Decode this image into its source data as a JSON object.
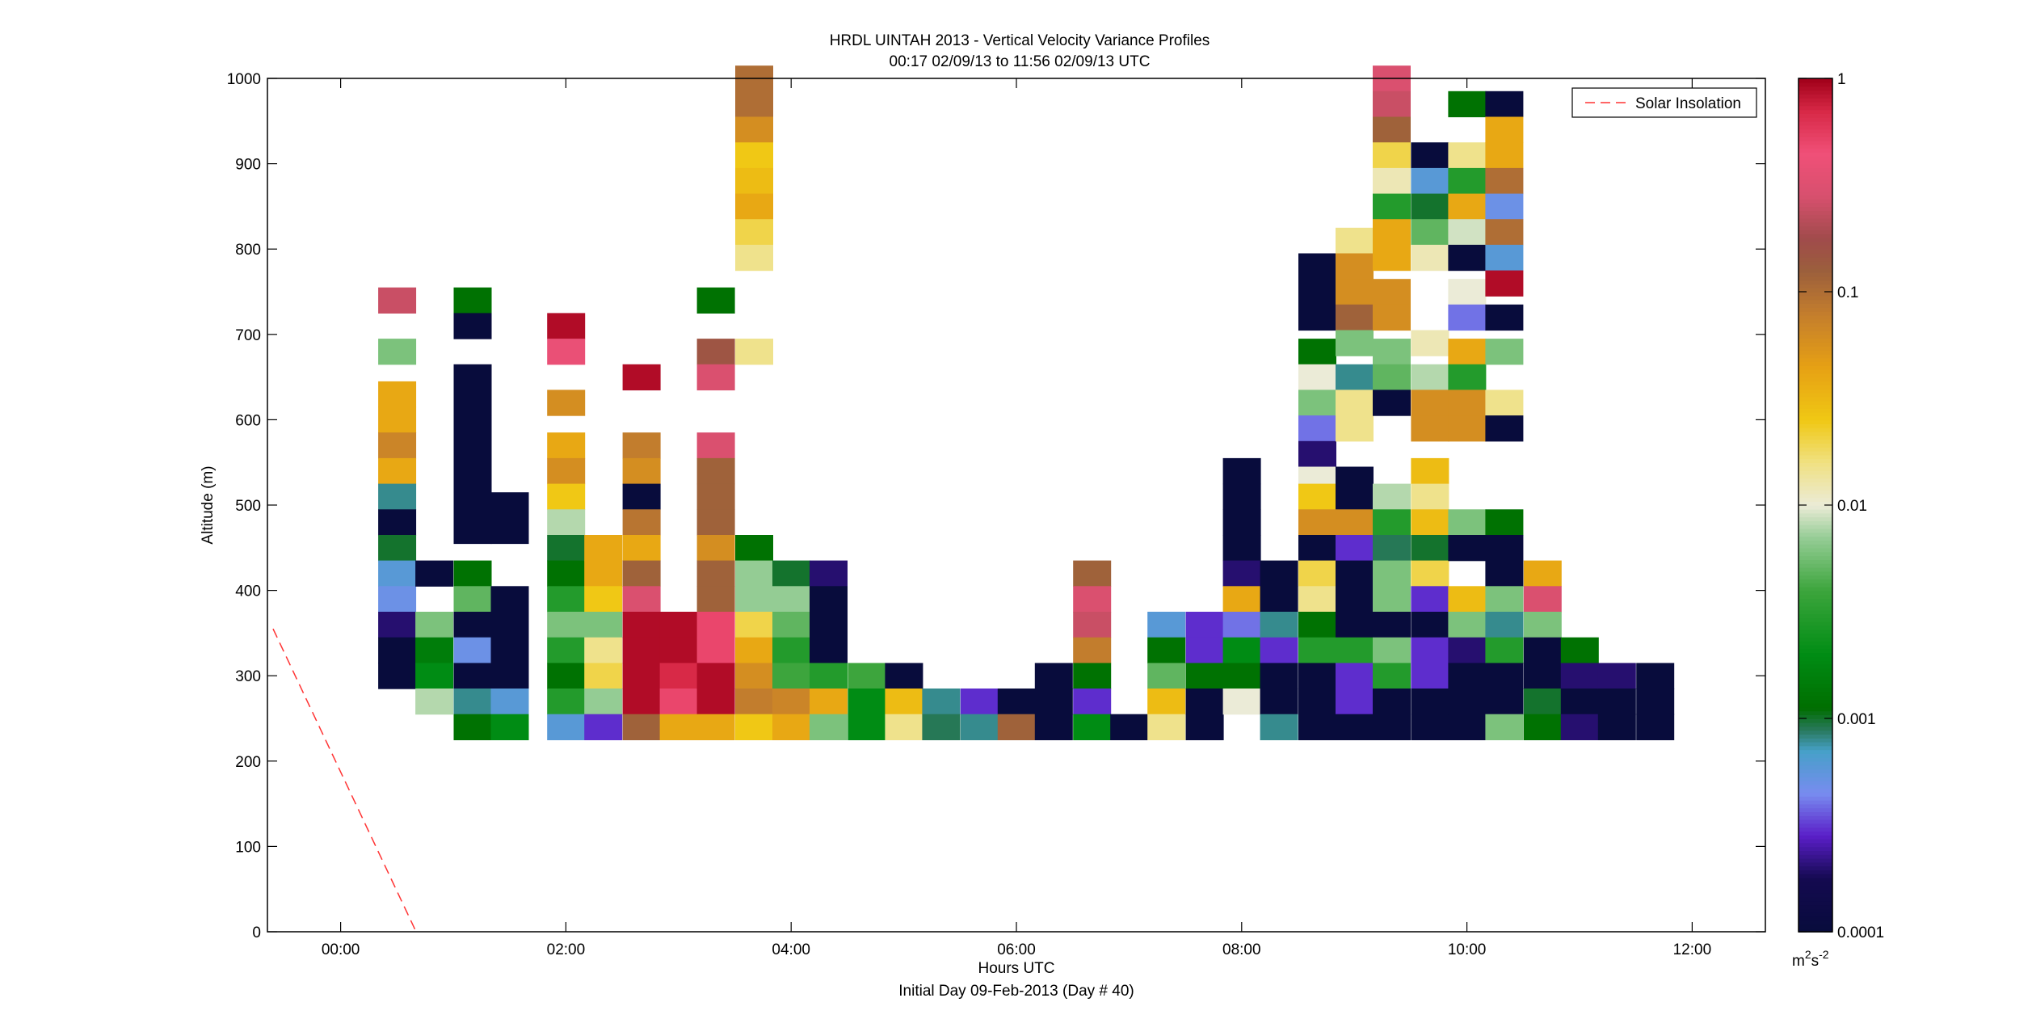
{
  "chart_data": {
    "type": "heatmap",
    "title": "HRDL UINTAH 2013 - Vertical Velocity Variance Profiles",
    "subtitle": "00:17 02/09/13 to 11:56 02/09/13  UTC",
    "xlabel": "Hours UTC",
    "xlabel2": "Initial Day 09-Feb-2013 (Day # 40)",
    "ylabel": "Altitude (m)",
    "xlim": [
      -0.65,
      12.65
    ],
    "ylim": [
      0,
      1000
    ],
    "x_tick_labels": [
      "00:00",
      "02:00",
      "04:00",
      "06:00",
      "08:00",
      "10:00",
      "12:00"
    ],
    "x_tick_values": [
      0,
      2,
      4,
      6,
      8,
      10,
      12
    ],
    "y_tick_labels": [
      "0",
      "100",
      "200",
      "300",
      "400",
      "500",
      "600",
      "700",
      "800",
      "900",
      "1000"
    ],
    "y_tick_values": [
      0,
      100,
      200,
      300,
      400,
      500,
      600,
      700,
      800,
      900,
      1000
    ],
    "colorbar": {
      "scale": "log",
      "range": [
        0.0001,
        1
      ],
      "tick_labels": [
        "1",
        "0.1",
        "0.01",
        "0.001",
        "0.0001"
      ],
      "tick_values": [
        1,
        0.1,
        0.01,
        0.001,
        0.0001
      ],
      "unit": "m²s⁻²",
      "unit_base": "m",
      "unit_exp1": "2",
      "unit_mid": "s",
      "unit_exp2": "-2"
    },
    "legend": {
      "placement": "top-right",
      "entries": [
        {
          "label": "Solar Insolation",
          "style": "dashed",
          "color": "#ff3333"
        }
      ]
    },
    "solar_insolation_line": {
      "x": [
        -0.6,
        0.67
      ],
      "y": [
        355,
        0
      ]
    },
    "bin_width_hours": 0.333,
    "bin_height_m": 30,
    "profiles": [
      {
        "t": 0.5,
        "z": [
          740,
          680,
          630,
          600,
          570,
          540,
          510,
          480,
          450,
          420,
          390,
          360,
          330,
          300
        ],
        "v": [
          0.25,
          0.006,
          0.04,
          0.04,
          0.07,
          0.04,
          0.0008,
          0.0001,
          0.001,
          0.0006,
          0.0005,
          0.0002,
          0.0001,
          0.0001
        ]
      },
      {
        "t": 0.83,
        "z": [
          420,
          360,
          330,
          300,
          270
        ],
        "v": [
          0.0001,
          0.006,
          0.0015,
          0.002,
          0.008
        ]
      },
      {
        "t": 1.17,
        "z": [
          740,
          710,
          650,
          620,
          590,
          560,
          530,
          500,
          470,
          420,
          390,
          360,
          330,
          300,
          270,
          240
        ],
        "v": [
          0.0012,
          0.0001,
          0.0001,
          0.0001,
          0.0001,
          0.0001,
          0.0001,
          0.0001,
          0.0001,
          0.0012,
          0.005,
          0.0001,
          0.0005,
          0.0001,
          0.0008,
          0.0012
        ]
      },
      {
        "t": 1.5,
        "z": [
          500,
          470,
          390,
          360,
          330,
          300,
          270,
          240
        ],
        "v": [
          0.0001,
          0.0001,
          0.0001,
          0.0001,
          0.0001,
          0.0001,
          0.0006,
          0.002
        ]
      },
      {
        "t": 2.0,
        "z": [
          710,
          680,
          620,
          570,
          540,
          510,
          480,
          450,
          420,
          390,
          360,
          330,
          300,
          270,
          240
        ],
        "v": [
          0.9,
          0.4,
          0.06,
          0.04,
          0.06,
          0.025,
          0.008,
          0.001,
          0.0012,
          0.003,
          0.006,
          0.003,
          0.0012,
          0.003,
          0.0006
        ]
      },
      {
        "t": 2.33,
        "z": [
          450,
          420,
          390,
          360,
          330,
          300,
          270,
          240
        ],
        "v": [
          0.04,
          0.04,
          0.025,
          0.006,
          0.015,
          0.02,
          0.007,
          0.0003
        ]
      },
      {
        "t": 2.67,
        "z": [
          650,
          570,
          540,
          510,
          480,
          450,
          420,
          390,
          360,
          330,
          300,
          270,
          240
        ],
        "v": [
          0.9,
          0.08,
          0.06,
          0.0001,
          0.09,
          0.04,
          0.12,
          0.3,
          0.9,
          0.9,
          0.9,
          0.9,
          0.12
        ]
      },
      {
        "t": 3.0,
        "z": [
          360,
          330,
          300,
          270,
          240
        ],
        "v": [
          0.9,
          0.9,
          0.7,
          0.5,
          0.04
        ]
      },
      {
        "t": 3.33,
        "z": [
          740,
          680,
          650,
          570,
          540,
          510,
          480,
          450,
          420,
          390,
          360,
          330,
          300,
          270,
          240
        ],
        "v": [
          0.0012,
          0.15,
          0.3,
          0.3,
          0.12,
          0.12,
          0.12,
          0.06,
          0.12,
          0.12,
          0.5,
          0.5,
          0.9,
          0.9,
          0.04
        ]
      },
      {
        "t": 3.67,
        "z": [
          1000,
          970,
          940,
          910,
          880,
          850,
          820,
          790,
          680,
          450,
          420,
          390,
          360,
          330,
          300,
          270,
          240
        ],
        "v": [
          0.1,
          0.1,
          0.06,
          0.025,
          0.03,
          0.04,
          0.02,
          0.015,
          0.015,
          0.0012,
          0.007,
          0.007,
          0.02,
          0.04,
          0.06,
          0.08,
          0.025
        ]
      },
      {
        "t": 4.0,
        "z": [
          420,
          390,
          360,
          330,
          300,
          270,
          240
        ],
        "v": [
          0.001,
          0.007,
          0.005,
          0.003,
          0.004,
          0.07,
          0.04
        ]
      },
      {
        "t": 4.33,
        "z": [
          420,
          390,
          360,
          330,
          300,
          270,
          240
        ],
        "v": [
          0.0002,
          0.0001,
          0.0001,
          0.0001,
          0.003,
          0.04,
          0.006
        ]
      },
      {
        "t": 4.67,
        "z": [
          300,
          270,
          240
        ],
        "v": [
          0.004,
          0.002,
          0.002
        ]
      },
      {
        "t": 5.0,
        "z": [
          300,
          270,
          240
        ],
        "v": [
          0.0001,
          0.03,
          0.015
        ]
      },
      {
        "t": 5.33,
        "z": [
          270,
          240
        ],
        "v": [
          0.0008,
          0.0009
        ]
      },
      {
        "t": 5.67,
        "z": [
          270,
          240
        ],
        "v": [
          0.0003,
          0.0008
        ]
      },
      {
        "t": 6.0,
        "z": [
          270,
          240
        ],
        "v": [
          0.0001,
          0.12
        ]
      },
      {
        "t": 6.33,
        "z": [
          300,
          270,
          240
        ],
        "v": [
          0.0001,
          0.0001,
          0.0001
        ]
      },
      {
        "t": 6.67,
        "z": [
          420,
          390,
          360,
          330,
          300,
          270,
          240
        ],
        "v": [
          0.12,
          0.3,
          0.25,
          0.08,
          0.0012,
          0.0003,
          0.002
        ]
      },
      {
        "t": 7.0,
        "z": [
          240
        ],
        "v": [
          0.0001
        ]
      },
      {
        "t": 7.33,
        "z": [
          360,
          330,
          300,
          270,
          240
        ],
        "v": [
          0.0006,
          0.0012,
          0.005,
          0.03,
          0.015
        ]
      },
      {
        "t": 7.67,
        "z": [
          360,
          330,
          300,
          270,
          240
        ],
        "v": [
          0.0003,
          0.0003,
          0.0012,
          0.0001,
          0.0001
        ]
      },
      {
        "t": 8.0,
        "z": [
          540,
          510,
          480,
          450,
          420,
          390,
          360,
          330,
          300,
          270
        ],
        "v": [
          0.0001,
          0.0001,
          0.0001,
          0.0001,
          0.0002,
          0.04,
          0.0004,
          0.002,
          0.0012,
          0.01
        ]
      },
      {
        "t": 8.33,
        "z": [
          420,
          390,
          360,
          330,
          300,
          270,
          240
        ],
        "v": [
          0.0001,
          0.0001,
          0.0008,
          0.0003,
          0.0001,
          0.0001,
          0.0008
        ]
      },
      {
        "t": 8.67,
        "z": [
          780,
          750,
          720,
          680,
          650,
          620,
          590,
          560,
          530,
          510,
          480,
          450,
          420,
          390,
          360,
          330,
          300,
          270,
          240
        ],
        "v": [
          0.0001,
          0.0001,
          0.0001,
          0.0012,
          0.01,
          0.006,
          0.0004,
          0.0002,
          0.01,
          0.025,
          0.06,
          0.0001,
          0.02,
          0.015,
          0.0012,
          0.003,
          0.0001,
          0.0001,
          0.0001
        ]
      },
      {
        "t": 9.0,
        "z": [
          810,
          780,
          750,
          720,
          690,
          650,
          620,
          590,
          530,
          510,
          480,
          450,
          420,
          390,
          360,
          330,
          300,
          270,
          240
        ],
        "v": [
          0.015,
          0.06,
          0.06,
          0.12,
          0.006,
          0.0008,
          0.015,
          0.015,
          0.0001,
          0.0001,
          0.06,
          0.0003,
          0.0001,
          0.0001,
          0.0001,
          0.003,
          0.0003,
          0.0003,
          0.0001
        ]
      },
      {
        "t": 9.33,
        "z": [
          1000,
          970,
          940,
          910,
          880,
          850,
          820,
          790,
          750,
          720,
          680,
          650,
          620,
          510,
          480,
          450,
          420,
          390,
          360,
          330,
          300,
          270,
          240
        ],
        "v": [
          0.3,
          0.25,
          0.12,
          0.02,
          0.012,
          0.003,
          0.04,
          0.04,
          0.06,
          0.06,
          0.006,
          0.005,
          0.0001,
          0.008,
          0.003,
          0.0009,
          0.006,
          0.006,
          0.0001,
          0.006,
          0.003,
          0.0001,
          0.0001
        ]
      },
      {
        "t": 9.67,
        "z": [
          910,
          880,
          850,
          820,
          790,
          690,
          650,
          620,
          590,
          540,
          510,
          480,
          450,
          420,
          390,
          360,
          330,
          300,
          270,
          240
        ],
        "v": [
          0.0001,
          0.0006,
          0.001,
          0.005,
          0.012,
          0.012,
          0.008,
          0.06,
          0.06,
          0.03,
          0.015,
          0.03,
          0.001,
          0.02,
          0.0003,
          0.0001,
          0.0003,
          0.0003,
          0.0001,
          0.0001
        ]
      },
      {
        "t": 10.0,
        "z": [
          970,
          910,
          880,
          850,
          820,
          790,
          750,
          720,
          680,
          650,
          620,
          590,
          480,
          450,
          390,
          360,
          330,
          300,
          270,
          240
        ],
        "v": [
          0.0012,
          0.015,
          0.003,
          0.04,
          0.009,
          0.0001,
          0.01,
          0.0004,
          0.04,
          0.003,
          0.06,
          0.06,
          0.006,
          0.0001,
          0.03,
          0.006,
          0.0002,
          0.0001,
          0.0001,
          0.0001
        ]
      },
      {
        "t": 10.33,
        "z": [
          970,
          940,
          910,
          880,
          850,
          820,
          790,
          760,
          720,
          680,
          620,
          590,
          480,
          450,
          420,
          390,
          360,
          330,
          300,
          270,
          240
        ],
        "v": [
          0.0001,
          0.04,
          0.04,
          0.1,
          0.0005,
          0.1,
          0.0006,
          0.9,
          0.0001,
          0.006,
          0.015,
          0.0001,
          0.0012,
          0.0001,
          0.0001,
          0.006,
          0.0008,
          0.003,
          0.0001,
          0.0001,
          0.006
        ]
      },
      {
        "t": 10.67,
        "z": [
          420,
          390,
          360,
          330,
          300,
          270,
          240
        ],
        "v": [
          0.04,
          0.3,
          0.006,
          0.0001,
          0.0001,
          0.001,
          0.0012
        ]
      },
      {
        "t": 11.0,
        "z": [
          330,
          300,
          270,
          240
        ],
        "v": [
          0.0012,
          0.0002,
          0.0001,
          0.0002
        ]
      },
      {
        "t": 11.33,
        "z": [
          300,
          270,
          240
        ],
        "v": [
          0.0002,
          0.0001,
          0.0001
        ]
      },
      {
        "t": 11.67,
        "z": [
          300,
          270,
          240
        ],
        "v": [
          0.0001,
          0.0001,
          0.0001
        ]
      }
    ]
  }
}
